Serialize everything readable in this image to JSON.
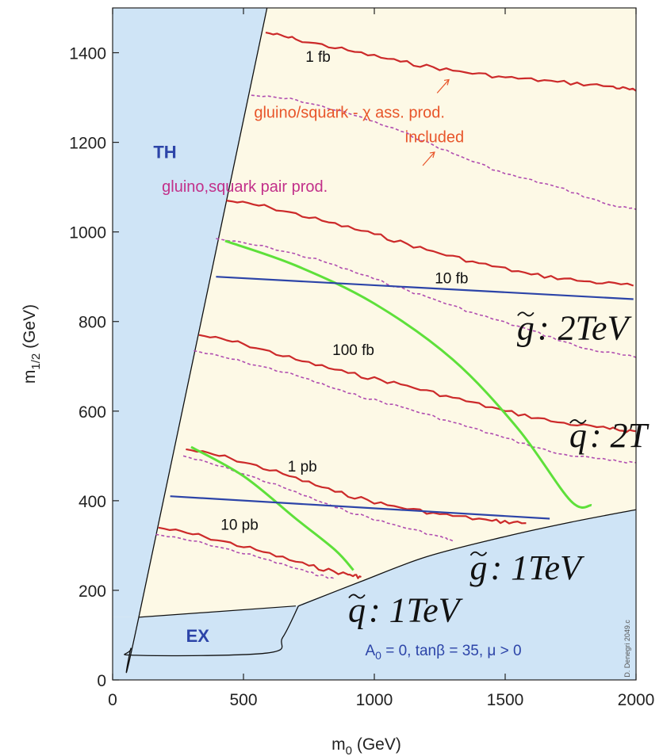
{
  "chart_data": {
    "type": "line",
    "xlabel": "m",
    "xlabel_sub": "0",
    "xlabel_unit": " (GeV)",
    "ylabel": "m",
    "ylabel_sub": "1/2",
    "ylabel_unit": " (GeV)",
    "xlim": [
      0,
      2000
    ],
    "ylim": [
      0,
      1500
    ],
    "xticks": [
      0,
      500,
      1000,
      1500,
      2000
    ],
    "yticks": [
      0,
      200,
      400,
      600,
      800,
      1000,
      1200,
      1400
    ],
    "colors": {
      "plot_bg": "#fdf9e6",
      "excluded_fill": "#cfe4f6",
      "solid": "#cc2a2a",
      "dashed": "#b04db0",
      "green": "#5ee03a",
      "blue": "#2c44a8",
      "label_orange": "#e8552a",
      "label_magenta": "#c2308a",
      "region_label": "#2c44a8"
    },
    "regions": [
      {
        "name": "TH",
        "points": [
          [
            0,
            0
          ],
          [
            0,
            1500
          ],
          [
            590,
            1500
          ],
          [
            100,
            140
          ],
          [
            0,
            140
          ]
        ]
      },
      {
        "name": "EX",
        "points": [
          [
            0,
            0
          ],
          [
            0,
            140
          ],
          [
            100,
            140
          ],
          [
            700,
            165
          ],
          [
            950,
            220
          ],
          [
            1200,
            275
          ],
          [
            1500,
            320
          ],
          [
            1750,
            352
          ],
          [
            2000,
            380
          ],
          [
            2000,
            0
          ]
        ]
      }
    ],
    "region_labels": [
      {
        "text": "TH",
        "x": 200,
        "y": 1165
      },
      {
        "text": "EX",
        "x": 325,
        "y": 85
      }
    ],
    "region_border": {
      "wedge": [
        [
          590,
          1500
        ],
        [
          100,
          140
        ],
        [
          70,
          70
        ],
        [
          90,
          55
        ],
        [
          590,
          60
        ],
        [
          650,
          95
        ],
        [
          710,
          165
        ]
      ],
      "curve": [
        [
          710,
          165
        ],
        [
          950,
          220
        ],
        [
          1200,
          275
        ],
        [
          1500,
          320
        ],
        [
          1750,
          352
        ],
        [
          2000,
          380
        ]
      ],
      "lower": [
        [
          100,
          140
        ],
        [
          700,
          165
        ]
      ]
    },
    "series": [
      {
        "name": "1 fb",
        "style": "solid",
        "points": [
          [
            585,
            1445
          ],
          [
            700,
            1430
          ],
          [
            900,
            1405
          ],
          [
            1100,
            1380
          ],
          [
            1300,
            1360
          ],
          [
            1500,
            1345
          ],
          [
            1700,
            1335
          ],
          [
            1900,
            1325
          ],
          [
            2000,
            1315
          ]
        ]
      },
      {
        "name": "1 fb",
        "style": "dashed",
        "points": [
          [
            530,
            1305
          ],
          [
            700,
            1295
          ],
          [
            900,
            1265
          ],
          [
            1100,
            1225
          ],
          [
            1300,
            1175
          ],
          [
            1500,
            1130
          ],
          [
            1700,
            1100
          ],
          [
            1900,
            1060
          ],
          [
            2000,
            1050
          ]
        ]
      },
      {
        "name": "10 fb",
        "style": "solid",
        "points": [
          [
            435,
            1070
          ],
          [
            600,
            1055
          ],
          [
            800,
            1025
          ],
          [
            1000,
            995
          ],
          [
            1200,
            960
          ],
          [
            1400,
            930
          ],
          [
            1600,
            905
          ],
          [
            1800,
            890
          ],
          [
            1990,
            880
          ]
        ]
      },
      {
        "name": "10 fb",
        "style": "dashed",
        "points": [
          [
            395,
            985
          ],
          [
            600,
            965
          ],
          [
            800,
            935
          ],
          [
            1000,
            895
          ],
          [
            1200,
            855
          ],
          [
            1400,
            815
          ],
          [
            1600,
            780
          ],
          [
            1800,
            740
          ],
          [
            2000,
            720
          ]
        ]
      },
      {
        "name": "100 fb",
        "style": "solid",
        "points": [
          [
            330,
            770
          ],
          [
            500,
            750
          ],
          [
            700,
            715
          ],
          [
            900,
            685
          ],
          [
            1100,
            660
          ],
          [
            1300,
            630
          ],
          [
            1500,
            600
          ],
          [
            1700,
            575
          ],
          [
            1900,
            560
          ],
          [
            2000,
            555
          ]
        ]
      },
      {
        "name": "100 fb",
        "style": "dashed",
        "points": [
          [
            310,
            735
          ],
          [
            500,
            710
          ],
          [
            700,
            680
          ],
          [
            900,
            640
          ],
          [
            1100,
            610
          ],
          [
            1300,
            575
          ],
          [
            1500,
            540
          ],
          [
            1700,
            505
          ],
          [
            1900,
            490
          ],
          [
            2000,
            485
          ]
        ]
      },
      {
        "name": "1 pb",
        "style": "solid",
        "points": [
          [
            280,
            515
          ],
          [
            450,
            495
          ],
          [
            650,
            460
          ],
          [
            850,
            420
          ],
          [
            1050,
            390
          ],
          [
            1250,
            370
          ],
          [
            1450,
            355
          ],
          [
            1580,
            350
          ]
        ]
      },
      {
        "name": "1 pb",
        "style": "dashed",
        "points": [
          [
            270,
            500
          ],
          [
            450,
            470
          ],
          [
            650,
            430
          ],
          [
            850,
            385
          ],
          [
            1050,
            350
          ],
          [
            1250,
            320
          ],
          [
            1300,
            310
          ]
        ]
      },
      {
        "name": "10 pb",
        "style": "solid",
        "points": [
          [
            175,
            340
          ],
          [
            350,
            320
          ],
          [
            550,
            290
          ],
          [
            750,
            255
          ],
          [
            900,
            235
          ],
          [
            950,
            230
          ]
        ]
      },
      {
        "name": "10 pb",
        "style": "dashed",
        "points": [
          [
            165,
            325
          ],
          [
            350,
            305
          ],
          [
            550,
            275
          ],
          [
            750,
            240
          ],
          [
            850,
            225
          ]
        ]
      }
    ],
    "green_curves": [
      {
        "points": [
          [
            430,
            980
          ],
          [
            700,
            925
          ],
          [
            1000,
            840
          ],
          [
            1300,
            715
          ],
          [
            1550,
            560
          ],
          [
            1750,
            400
          ],
          [
            1830,
            390
          ]
        ]
      },
      {
        "points": [
          [
            300,
            520
          ],
          [
            500,
            455
          ],
          [
            700,
            360
          ],
          [
            850,
            290
          ],
          [
            920,
            245
          ]
        ]
      }
    ],
    "blue_lines": [
      {
        "points": [
          [
            395,
            900
          ],
          [
            1990,
            850
          ]
        ]
      },
      {
        "points": [
          [
            220,
            410
          ],
          [
            1670,
            360
          ]
        ]
      }
    ],
    "annotations": [
      {
        "text": "1 fb",
        "x": 785,
        "y": 1380,
        "kind": "contour"
      },
      {
        "text": "10 fb",
        "x": 1295,
        "y": 885,
        "kind": "contour"
      },
      {
        "text": "100 fb",
        "x": 920,
        "y": 725,
        "kind": "contour"
      },
      {
        "text": "1 pb",
        "x": 725,
        "y": 465,
        "kind": "contour"
      },
      {
        "text": "10 pb",
        "x": 485,
        "y": 335,
        "kind": "contour"
      },
      {
        "text": "gluino/squark - χ  ass. prod.",
        "x": 905,
        "y": 1255,
        "kind": "orange"
      },
      {
        "text": "included",
        "x": 1230,
        "y": 1200,
        "kind": "orange"
      },
      {
        "text": "gluino,squark pair prod.",
        "x": 505,
        "y": 1090,
        "kind": "magenta"
      },
      {
        "text": "A",
        "sub": "0",
        "rest": " = 0, tanβ = 35, μ > 0",
        "x": 965,
        "y": 55,
        "kind": "params"
      }
    ],
    "arrows": [
      {
        "from": [
          1240,
          1310
        ],
        "to": [
          1285,
          1340
        ]
      },
      {
        "from": [
          1185,
          1148
        ],
        "to": [
          1230,
          1178
        ]
      }
    ],
    "mass_labels": [
      {
        "letter": "g",
        "text": ": 2TeV",
        "x": 1545,
        "y": 760
      },
      {
        "letter": "q",
        "text": ": 2T",
        "x": 1745,
        "y": 520
      },
      {
        "letter": "g",
        "text": ": 1TeV",
        "x": 1365,
        "y": 225
      },
      {
        "letter": "q",
        "text": ": 1TeV",
        "x": 900,
        "y": 130
      }
    ],
    "watermark": "D. Denegri 2049.c"
  }
}
